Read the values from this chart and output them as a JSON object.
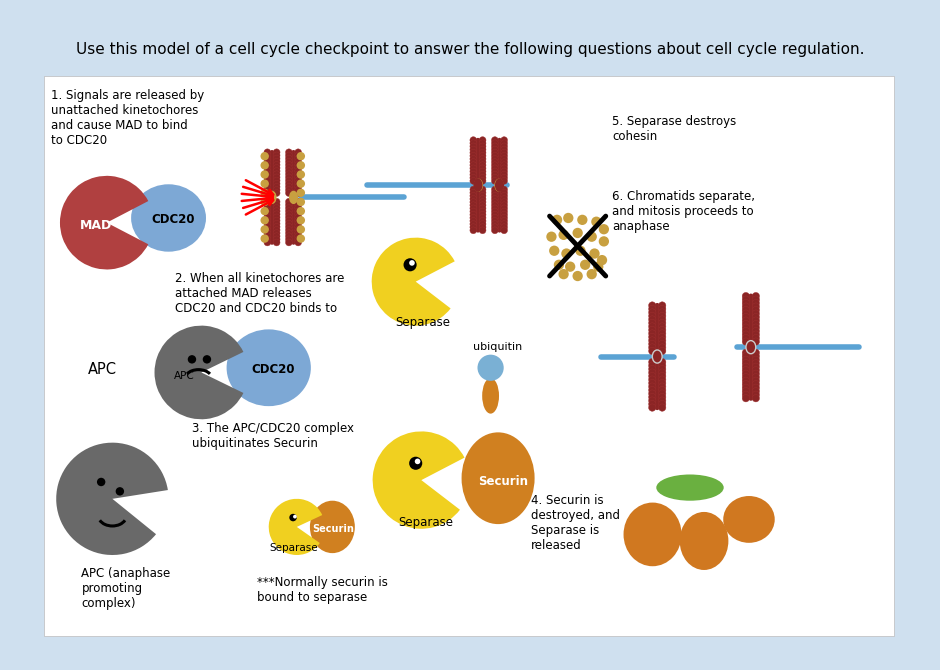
{
  "title": "Use this model of a cell cycle checkpoint to answer the following questions about cell cycle regulation.",
  "bg_outer": "#cfe0ef",
  "bg_inner": "#ffffff",
  "label1": "1. Signals are released by\nunattached kinetochores\nand cause MAD to bind\nto CDC20",
  "label2": "2. When all kinetochores are\nattached MAD releases\nCDC20 and CDC20 binds to",
  "label3": "3. The APC/CDC20 complex\nubiquitinates Securin",
  "label4": "4. Securin is\ndestroyed, and\nSeparase is\nreleased",
  "label5": "5. Separase destroys\ncohesin",
  "label6": "6. Chromatids separate,\nand mitosis proceeds to\nanaphase",
  "label_apc1": "APC",
  "label_mad": "MAD",
  "label_cdc20_1": "CDC20",
  "label_cdc20_2": "CDC20",
  "label_apc_full": "APC (anaphase\npromoting\ncomplex)",
  "label_separase1": "Separase",
  "label_separase2": "Separase",
  "label_separase3": "Separase",
  "label_securin1": "Securin",
  "label_securin2": "Securin",
  "label_ubiquitin": "ubiquitin",
  "label_note": "***Normally securin is\nbound to separase",
  "label_apc_inner": "APC",
  "color_mad": "#b04040",
  "color_cdc20": "#7da8d5",
  "color_apc": "#696969",
  "color_separase_yellow": "#f0d020",
  "color_securin_orange": "#d08020",
  "color_chrom_red": "#8b2525",
  "color_chrom_gold": "#c8a040",
  "color_ubiquitin": "#7ab0d4",
  "color_ellipse_green": "#6ab040",
  "color_ellipse_orange": "#d07820",
  "color_line": "#5ba3d4"
}
